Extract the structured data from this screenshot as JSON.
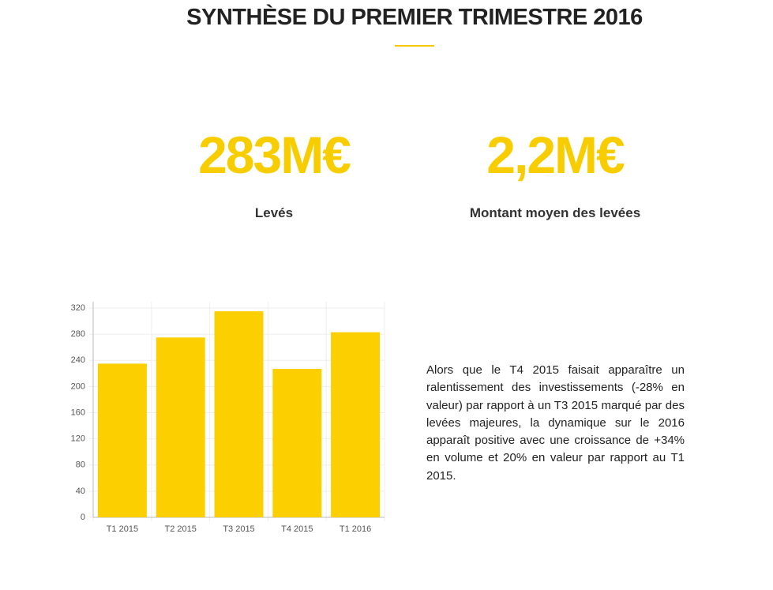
{
  "header": {
    "title": "SYNTHÈSE DU PREMIER TRIMESTRE 2016"
  },
  "stats": [
    {
      "value": "283M€",
      "label": "Levés"
    },
    {
      "value": "2,2M€",
      "label": "Montant moyen des levées"
    }
  ],
  "chart_data": {
    "type": "bar",
    "categories": [
      "T1 2015",
      "T2 2015",
      "T3 2015",
      "T4 2015",
      "T1 2016"
    ],
    "values": [
      235,
      275,
      315,
      227,
      283
    ],
    "color": "#fccf00",
    "ylim": [
      0,
      320
    ],
    "yticks": [
      0,
      40,
      80,
      120,
      160,
      200,
      240,
      280,
      320
    ],
    "grid": true
  },
  "paragraph": "Alors que le T4 2015 faisait apparaître un ralentissement des investissements (-28% en valeur) par rapport à un T3 2015 marqué par des levées majeures, la dynamique sur le 2016 apparaît positive avec une croissance de +34% en volume et 20% en valeur par rapport au T1 2015."
}
